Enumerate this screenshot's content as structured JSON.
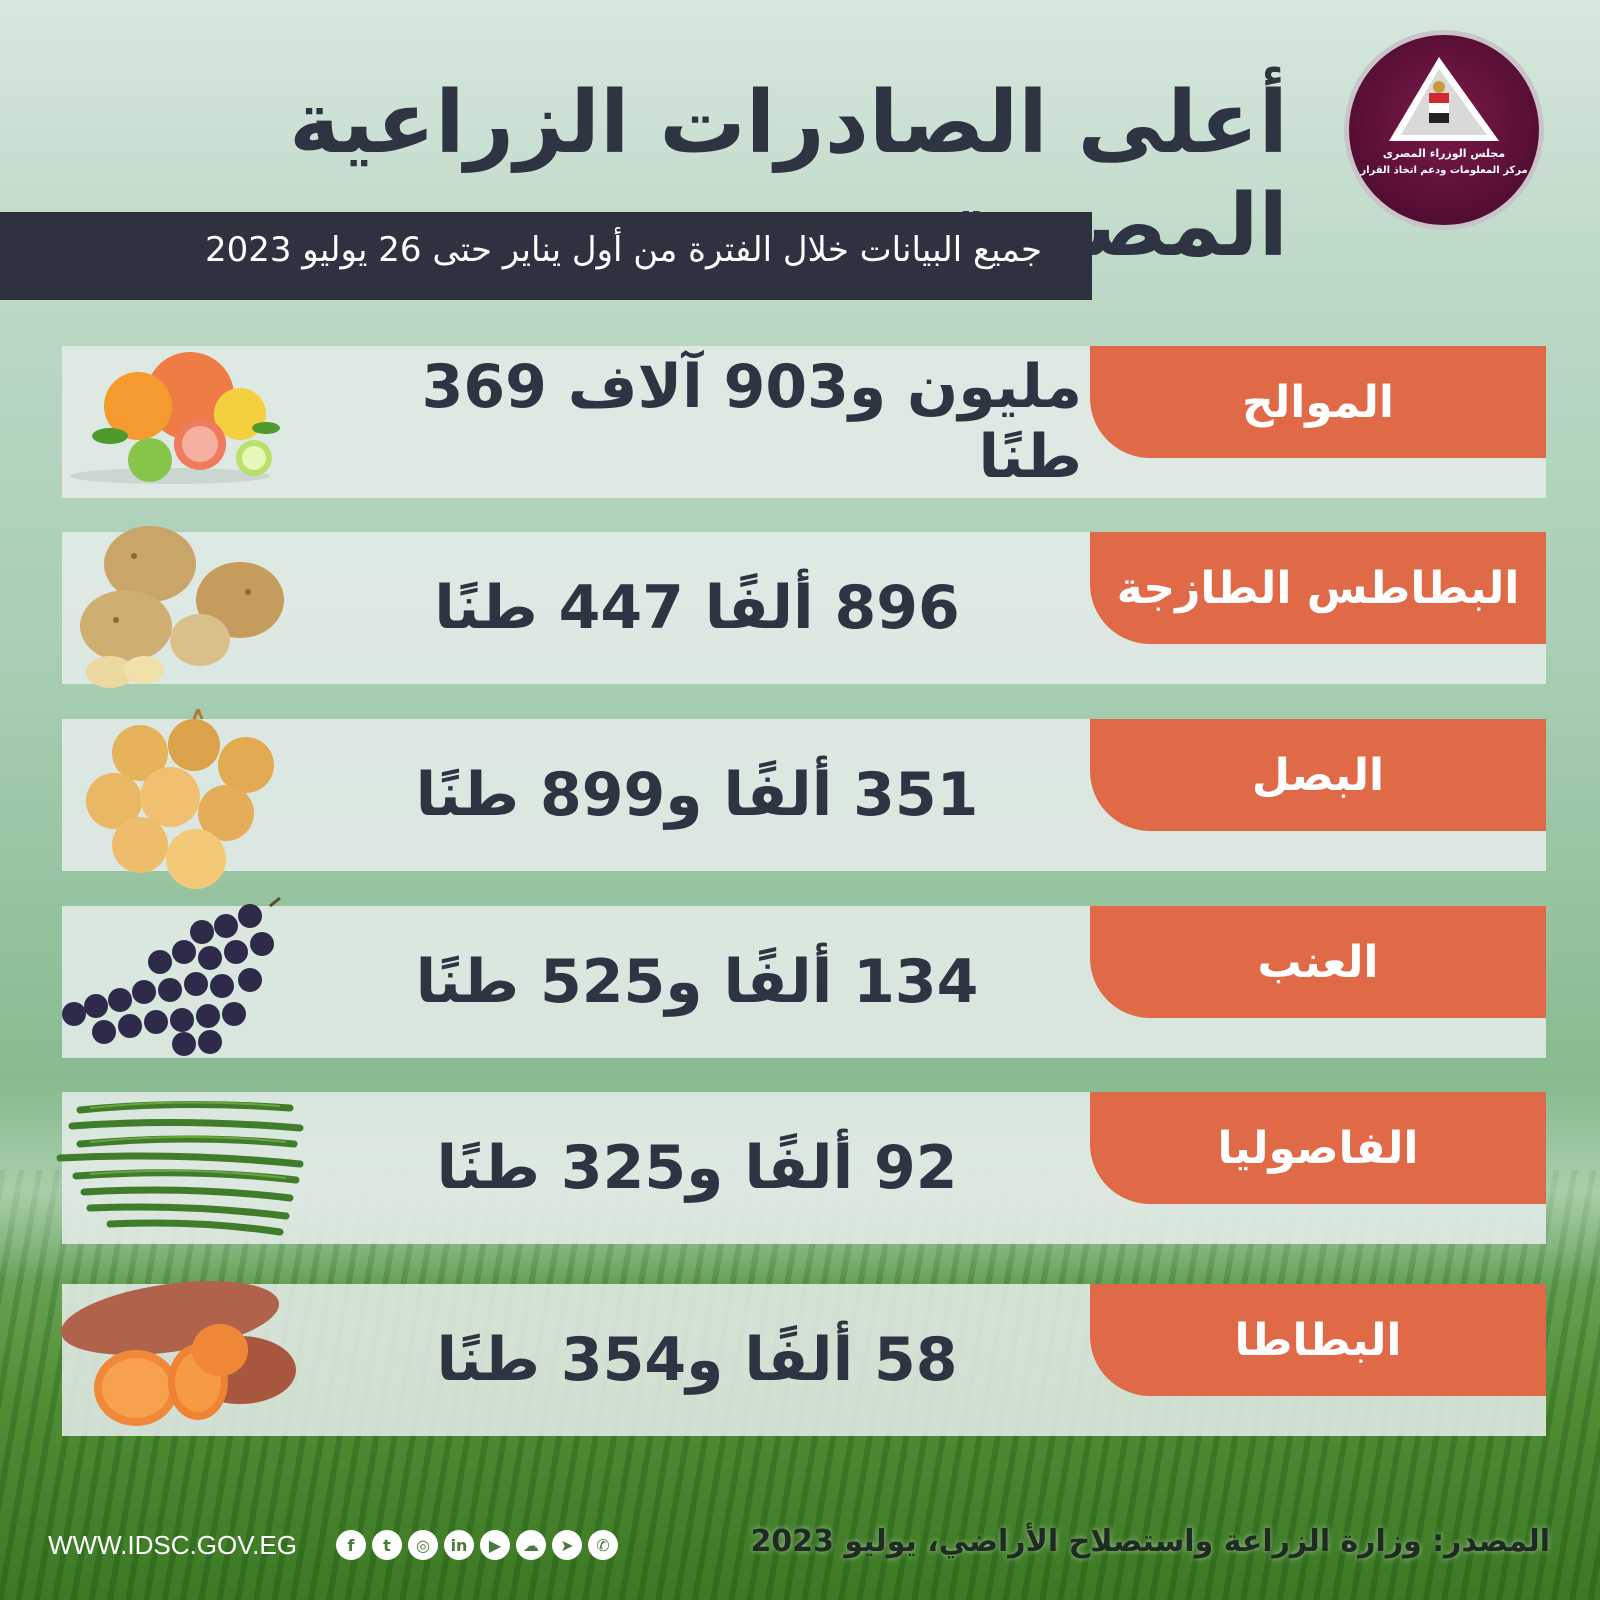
{
  "header": {
    "title": "أعلى الصادرات الزراعية المصرية",
    "subtitle": "جميع البيانات خلال الفترة من أول يناير حتى 26 يوليو 2023"
  },
  "logo": {
    "line1": "مجلس الوزراء المصرى",
    "line2": "مركز المعلومات ودعم اتخاذ القرار"
  },
  "exports": [
    {
      "name": "الموالح",
      "value": "مليون و903 آلاف 369 طنًا",
      "icon": "citrus-icon"
    },
    {
      "name": "البطاطس الطازجة",
      "value": "896 ألفًا 447 طنًا",
      "icon": "potato-icon"
    },
    {
      "name": "البصل",
      "value": "351 ألفًا و899 طنًا",
      "icon": "onion-icon"
    },
    {
      "name": "العنب",
      "value": "134 ألفًا و525 طنًا",
      "icon": "grapes-icon"
    },
    {
      "name": "الفاصوليا",
      "value": "92 ألفًا و325 طنًا",
      "icon": "green-beans-icon"
    },
    {
      "name": "البطاطا",
      "value": "58 ألفًا و354 طنًا",
      "icon": "sweet-potato-icon"
    }
  ],
  "footer": {
    "source": "المصدر: وزارة الزراعة واستصلاح الأراضي، يوليو 2023",
    "url": "WWW.IDSC.GOV.EG",
    "social": [
      "facebook-icon",
      "twitter-icon",
      "instagram-icon",
      "linkedin-icon",
      "youtube-icon",
      "soundcloud-icon",
      "telegram-icon",
      "whatsapp-icon"
    ]
  },
  "colors": {
    "accent": "#e06a47",
    "dark": "#2d3140",
    "text": "#2f3442",
    "logo": "#5a0f36"
  }
}
